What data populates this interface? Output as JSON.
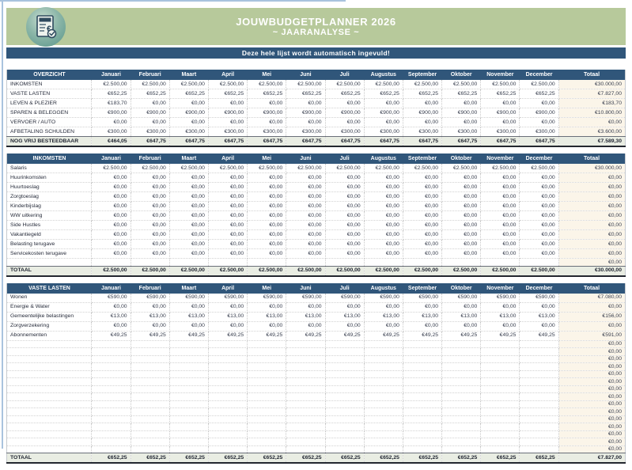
{
  "header": {
    "title_line1": "JOUWBUDGETPLANNER 2026",
    "title_line2": "~ JAARANALYSE ~",
    "logo": "budget-document-with-euro-and-checkmark",
    "banner": "Deze hele lijst wordt automatisch ingevuld!"
  },
  "colors": {
    "header_green": "#b7c99b",
    "navy": "#30567a",
    "emphasis_row_bg": "#e9ede3",
    "total_column_bg": "#fbf5e9",
    "logo_teal": "#72a79d"
  },
  "months": [
    "Januari",
    "Februari",
    "Maart",
    "April",
    "Mei",
    "Juni",
    "Juli",
    "Augustus",
    "September",
    "Oktober",
    "November",
    "December"
  ],
  "totaal_column_label": "Totaal",
  "tables": [
    {
      "name": "OVERZICHT",
      "rows": [
        {
          "label": "INKOMSTEN",
          "values": [
            "€2.500,00",
            "€2.500,00",
            "€2.500,00",
            "€2.500,00",
            "€2.500,00",
            "€2.500,00",
            "€2.500,00",
            "€2.500,00",
            "€2.500,00",
            "€2.500,00",
            "€2.500,00",
            "€2.500,00"
          ],
          "total": "€30.000,00"
        },
        {
          "label": "VASTE LASTEN",
          "values": [
            "€652,25",
            "€652,25",
            "€652,25",
            "€652,25",
            "€652,25",
            "€652,25",
            "€652,25",
            "€652,25",
            "€652,25",
            "€652,25",
            "€652,25",
            "€652,25"
          ],
          "total": "€7.827,00"
        },
        {
          "label": "LEVEN & PLEZIER",
          "values": [
            "€183,70",
            "€0,00",
            "€0,00",
            "€0,00",
            "€0,00",
            "€0,00",
            "€0,00",
            "€0,00",
            "€0,00",
            "€0,00",
            "€0,00",
            "€0,00"
          ],
          "total": "€183,70"
        },
        {
          "label": "SPAREN & BELEGGEN",
          "values": [
            "€900,00",
            "€900,00",
            "€900,00",
            "€900,00",
            "€900,00",
            "€900,00",
            "€900,00",
            "€900,00",
            "€900,00",
            "€900,00",
            "€900,00",
            "€900,00"
          ],
          "total": "€10.800,00"
        },
        {
          "label": "VERVOER / AUTO",
          "values": [
            "€0,00",
            "€0,00",
            "€0,00",
            "€0,00",
            "€0,00",
            "€0,00",
            "€0,00",
            "€0,00",
            "€0,00",
            "€0,00",
            "€0,00",
            "€0,00"
          ],
          "total": "€0,00"
        },
        {
          "label": "AFBETALING SCHULDEN",
          "values": [
            "€300,00",
            "€300,00",
            "€300,00",
            "€300,00",
            "€300,00",
            "€300,00",
            "€300,00",
            "€300,00",
            "€300,00",
            "€300,00",
            "€300,00",
            "€300,00"
          ],
          "total": "€3.600,00"
        },
        {
          "label": "NOG VRIJ BESTEEDBAAR",
          "emphasis": true,
          "values": [
            "€464,05",
            "€647,75",
            "€647,75",
            "€647,75",
            "€647,75",
            "€647,75",
            "€647,75",
            "€647,75",
            "€647,75",
            "€647,75",
            "€647,75",
            "€647,75"
          ],
          "total": "€7.589,30"
        }
      ]
    },
    {
      "name": "INKOMSTEN",
      "rows": [
        {
          "label": "Salaris",
          "values": [
            "€2.500,00",
            "€2.500,00",
            "€2.500,00",
            "€2.500,00",
            "€2.500,00",
            "€2.500,00",
            "€2.500,00",
            "€2.500,00",
            "€2.500,00",
            "€2.500,00",
            "€2.500,00",
            "€2.500,00"
          ],
          "total": "€30.000,00"
        },
        {
          "label": "Huurinkomsten",
          "values": [
            "€0,00",
            "€0,00",
            "€0,00",
            "€0,00",
            "€0,00",
            "€0,00",
            "€0,00",
            "€0,00",
            "€0,00",
            "€0,00",
            "€0,00",
            "€0,00"
          ],
          "total": "€0,00"
        },
        {
          "label": "Huurtoeslag",
          "values": [
            "€0,00",
            "€0,00",
            "€0,00",
            "€0,00",
            "€0,00",
            "€0,00",
            "€0,00",
            "€0,00",
            "€0,00",
            "€0,00",
            "€0,00",
            "€0,00"
          ],
          "total": "€0,00"
        },
        {
          "label": "Zorgtoeslag",
          "values": [
            "€0,00",
            "€0,00",
            "€0,00",
            "€0,00",
            "€0,00",
            "€0,00",
            "€0,00",
            "€0,00",
            "€0,00",
            "€0,00",
            "€0,00",
            "€0,00"
          ],
          "total": "€0,00"
        },
        {
          "label": "Kinderbijslag",
          "values": [
            "€0,00",
            "€0,00",
            "€0,00",
            "€0,00",
            "€0,00",
            "€0,00",
            "€0,00",
            "€0,00",
            "€0,00",
            "€0,00",
            "€0,00",
            "€0,00"
          ],
          "total": "€0,00"
        },
        {
          "label": "WW uitkering",
          "values": [
            "€0,00",
            "€0,00",
            "€0,00",
            "€0,00",
            "€0,00",
            "€0,00",
            "€0,00",
            "€0,00",
            "€0,00",
            "€0,00",
            "€0,00",
            "€0,00"
          ],
          "total": "€0,00"
        },
        {
          "label": "Side Hustles",
          "values": [
            "€0,00",
            "€0,00",
            "€0,00",
            "€0,00",
            "€0,00",
            "€0,00",
            "€0,00",
            "€0,00",
            "€0,00",
            "€0,00",
            "€0,00",
            "€0,00"
          ],
          "total": "€0,00"
        },
        {
          "label": "Vakantiegeld",
          "values": [
            "€0,00",
            "€0,00",
            "€0,00",
            "€0,00",
            "€0,00",
            "€0,00",
            "€0,00",
            "€0,00",
            "€0,00",
            "€0,00",
            "€0,00",
            "€0,00"
          ],
          "total": "€0,00"
        },
        {
          "label": "Belasting terugave",
          "values": [
            "€0,00",
            "€0,00",
            "€0,00",
            "€0,00",
            "€0,00",
            "€0,00",
            "€0,00",
            "€0,00",
            "€0,00",
            "€0,00",
            "€0,00",
            "€0,00"
          ],
          "total": "€0,00"
        },
        {
          "label": "Servicekosten terugave",
          "values": [
            "€0,00",
            "€0,00",
            "€0,00",
            "€0,00",
            "€0,00",
            "€0,00",
            "€0,00",
            "€0,00",
            "€0,00",
            "€0,00",
            "€0,00",
            "€0,00"
          ],
          "total": "€0,00"
        },
        {
          "type": "empty",
          "count": 1,
          "total": "€0,00"
        },
        {
          "label": "TOTAAL",
          "emphasis": true,
          "values": [
            "€2.500,00",
            "€2.500,00",
            "€2.500,00",
            "€2.500,00",
            "€2.500,00",
            "€2.500,00",
            "€2.500,00",
            "€2.500,00",
            "€2.500,00",
            "€2.500,00",
            "€2.500,00",
            "€2.500,00"
          ],
          "total": "€30.000,00"
        }
      ]
    },
    {
      "name": "VASTE LASTEN",
      "rows": [
        {
          "label": "Wonen",
          "values": [
            "€590,00",
            "€590,00",
            "€590,00",
            "€590,00",
            "€590,00",
            "€590,00",
            "€590,00",
            "€590,00",
            "€590,00",
            "€590,00",
            "€590,00",
            "€590,00"
          ],
          "total": "€7.080,00"
        },
        {
          "label": "Energie & Water",
          "values": [
            "€0,00",
            "€0,00",
            "€0,00",
            "€0,00",
            "€0,00",
            "€0,00",
            "€0,00",
            "€0,00",
            "€0,00",
            "€0,00",
            "€0,00",
            "€0,00"
          ],
          "total": "€0,00"
        },
        {
          "label": "Gemeentelijke belastingen",
          "values": [
            "€13,00",
            "€13,00",
            "€13,00",
            "€13,00",
            "€13,00",
            "€13,00",
            "€13,00",
            "€13,00",
            "€13,00",
            "€13,00",
            "€13,00",
            "€13,00"
          ],
          "total": "€156,00"
        },
        {
          "label": "Zorgverzekering",
          "values": [
            "€0,00",
            "€0,00",
            "€0,00",
            "€0,00",
            "€0,00",
            "€0,00",
            "€0,00",
            "€0,00",
            "€0,00",
            "€0,00",
            "€0,00",
            "€0,00"
          ],
          "total": "€0,00"
        },
        {
          "label": "Abonnementen",
          "values": [
            "€49,25",
            "€49,25",
            "€49,25",
            "€49,25",
            "€49,25",
            "€49,25",
            "€49,25",
            "€49,25",
            "€49,25",
            "€49,25",
            "€49,25",
            "€49,25"
          ],
          "total": "€591,00"
        },
        {
          "type": "empty",
          "count": 15,
          "total": "€0,00"
        },
        {
          "label": "TOTAAL",
          "emphasis": true,
          "values": [
            "€652,25",
            "€652,25",
            "€652,25",
            "€652,25",
            "€652,25",
            "€652,25",
            "€652,25",
            "€652,25",
            "€652,25",
            "€652,25",
            "€652,25",
            "€652,25"
          ],
          "total": "€7.827,00"
        }
      ]
    }
  ]
}
